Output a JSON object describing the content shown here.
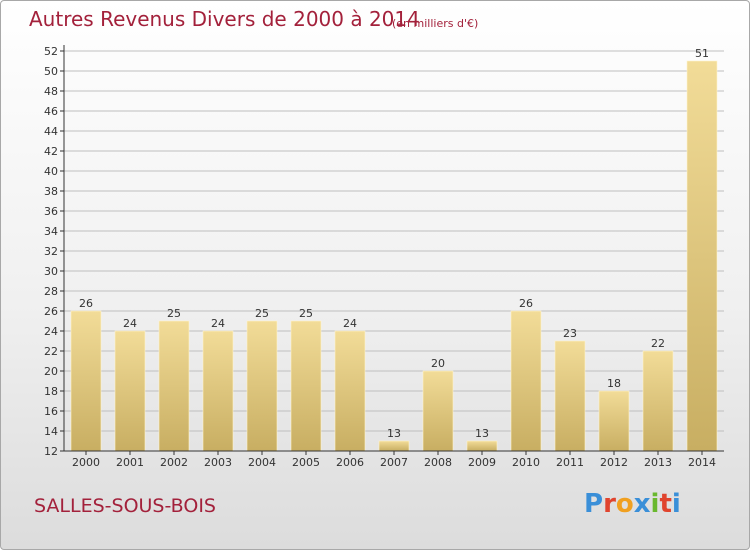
{
  "title": "Autres Revenus Divers de 2000 à 2014",
  "unit_note": "(en milliers d'€)",
  "location": "SALLES-SOUS-BOIS",
  "logo": {
    "text": "Proxiti",
    "letters": [
      "P",
      "r",
      "o",
      "x",
      "i",
      "t",
      "i"
    ],
    "letter_colors": [
      "#3a8fd8",
      "#e0442e",
      "#f0a020",
      "#3a8fd8",
      "#6ab82e",
      "#e0442e",
      "#3a8fd8"
    ]
  },
  "colors": {
    "title": "#a3213b",
    "bar_light": "#f2dc98",
    "bar_dark": "#c8ae62",
    "grid": "#bfbfbf",
    "axis": "#333333"
  },
  "chart_data": {
    "type": "bar",
    "categories": [
      "2000",
      "2001",
      "2002",
      "2003",
      "2004",
      "2005",
      "2006",
      "2007",
      "2008",
      "2009",
      "2010",
      "2011",
      "2012",
      "2013",
      "2014"
    ],
    "values": [
      26,
      24,
      25,
      24,
      25,
      25,
      24,
      13,
      20,
      13,
      26,
      23,
      18,
      22,
      51
    ],
    "data_labels": [
      "26",
      "24",
      "25",
      "24",
      "25",
      "25",
      "24",
      "13",
      "20",
      "13",
      "26",
      "23",
      "18",
      "22",
      "51"
    ],
    "y_ticks": [
      "12",
      "14",
      "16",
      "18",
      "20",
      "22",
      "24",
      "26",
      "28",
      "30",
      "32",
      "34",
      "36",
      "38",
      "40",
      "42",
      "44",
      "46",
      "48",
      "50",
      "52"
    ],
    "ylim": [
      12,
      52
    ],
    "grid": true,
    "legend": "none"
  }
}
